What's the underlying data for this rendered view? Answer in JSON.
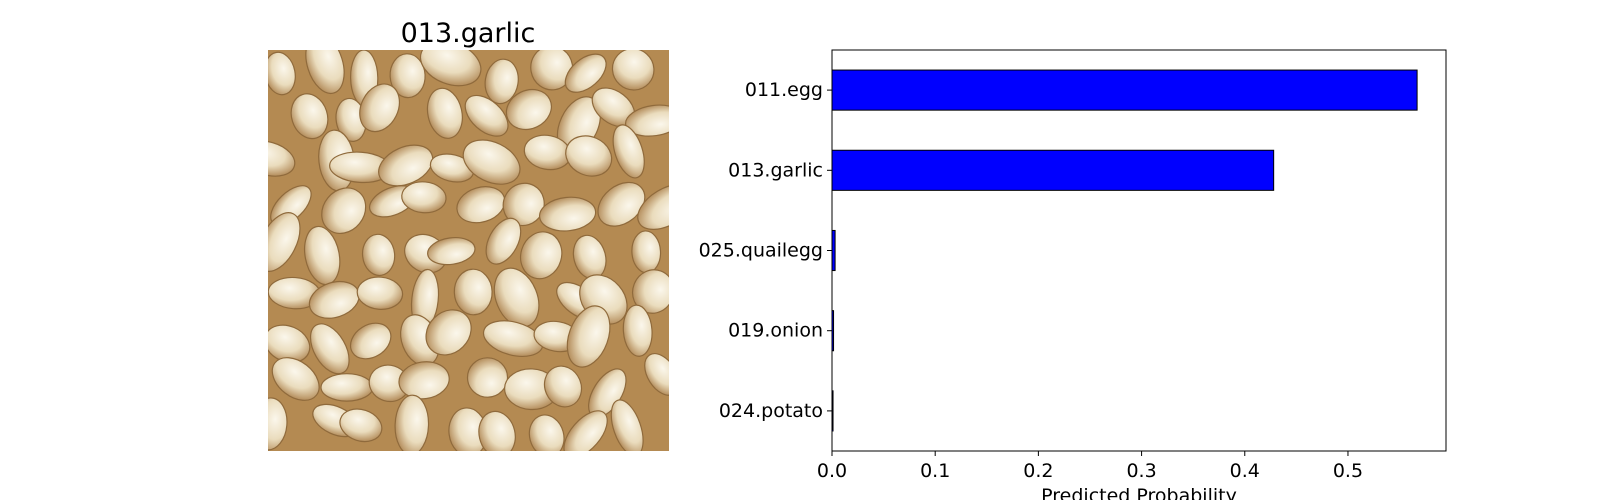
{
  "image_panel": {
    "title": "013.garlic",
    "subject": "photo of peeled garlic cloves",
    "colors": {
      "light": "#efe6cf",
      "mid": "#d8c49c",
      "dark": "#a57f4c",
      "bg": "#b48a52"
    }
  },
  "chart_data": {
    "type": "bar",
    "orientation": "horizontal",
    "categories": [
      "011.egg",
      "013.garlic",
      "025.quailegg",
      "019.onion",
      "024.potato"
    ],
    "values": [
      0.567,
      0.428,
      0.003,
      0.0015,
      0.001
    ],
    "xlabel": "Predicted Probability",
    "ylabel": "",
    "xlim": [
      0,
      0.595
    ],
    "xticks": [
      0.0,
      0.1,
      0.2,
      0.3,
      0.4,
      0.5
    ],
    "xtick_labels": [
      "0.0",
      "0.1",
      "0.2",
      "0.3",
      "0.4",
      "0.5"
    ],
    "bar_color": "#0000ff",
    "edge_color": "#000000",
    "grid": false
  }
}
